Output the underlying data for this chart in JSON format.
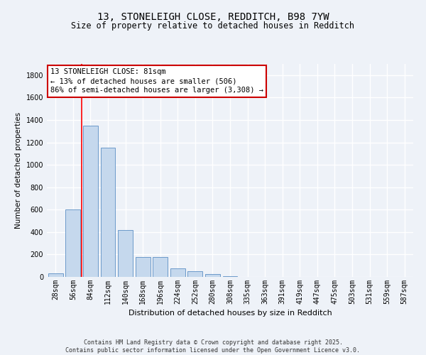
{
  "title": "13, STONELEIGH CLOSE, REDDITCH, B98 7YW",
  "subtitle": "Size of property relative to detached houses in Redditch",
  "xlabel": "Distribution of detached houses by size in Redditch",
  "ylabel": "Number of detached properties",
  "bar_color": "#c5d8ed",
  "bar_edge_color": "#5b8ec4",
  "categories": [
    "28sqm",
    "56sqm",
    "84sqm",
    "112sqm",
    "140sqm",
    "168sqm",
    "196sqm",
    "224sqm",
    "252sqm",
    "280sqm",
    "308sqm",
    "335sqm",
    "363sqm",
    "391sqm",
    "419sqm",
    "447sqm",
    "475sqm",
    "503sqm",
    "531sqm",
    "559sqm",
    "587sqm"
  ],
  "values": [
    30,
    600,
    1350,
    1150,
    420,
    180,
    175,
    75,
    50,
    25,
    5,
    0,
    3,
    0,
    0,
    0,
    0,
    0,
    0,
    0,
    0
  ],
  "ylim": [
    0,
    1900
  ],
  "yticks": [
    0,
    200,
    400,
    600,
    800,
    1000,
    1200,
    1400,
    1600,
    1800
  ],
  "vline_x": 1.5,
  "annotation_text": "13 STONELEIGH CLOSE: 81sqm\n← 13% of detached houses are smaller (506)\n86% of semi-detached houses are larger (3,308) →",
  "annotation_box_color": "#ffffff",
  "annotation_box_edge_color": "#cc0000",
  "footer_text": "Contains HM Land Registry data © Crown copyright and database right 2025.\nContains public sector information licensed under the Open Government Licence v3.0.",
  "background_color": "#eef2f8",
  "grid_color": "#ffffff",
  "fig_width": 6.0,
  "fig_height": 5.0,
  "title_fontsize": 10,
  "subtitle_fontsize": 8.5,
  "xlabel_fontsize": 8,
  "ylabel_fontsize": 7.5,
  "tick_fontsize": 7,
  "annotation_fontsize": 7.5,
  "footer_fontsize": 6
}
